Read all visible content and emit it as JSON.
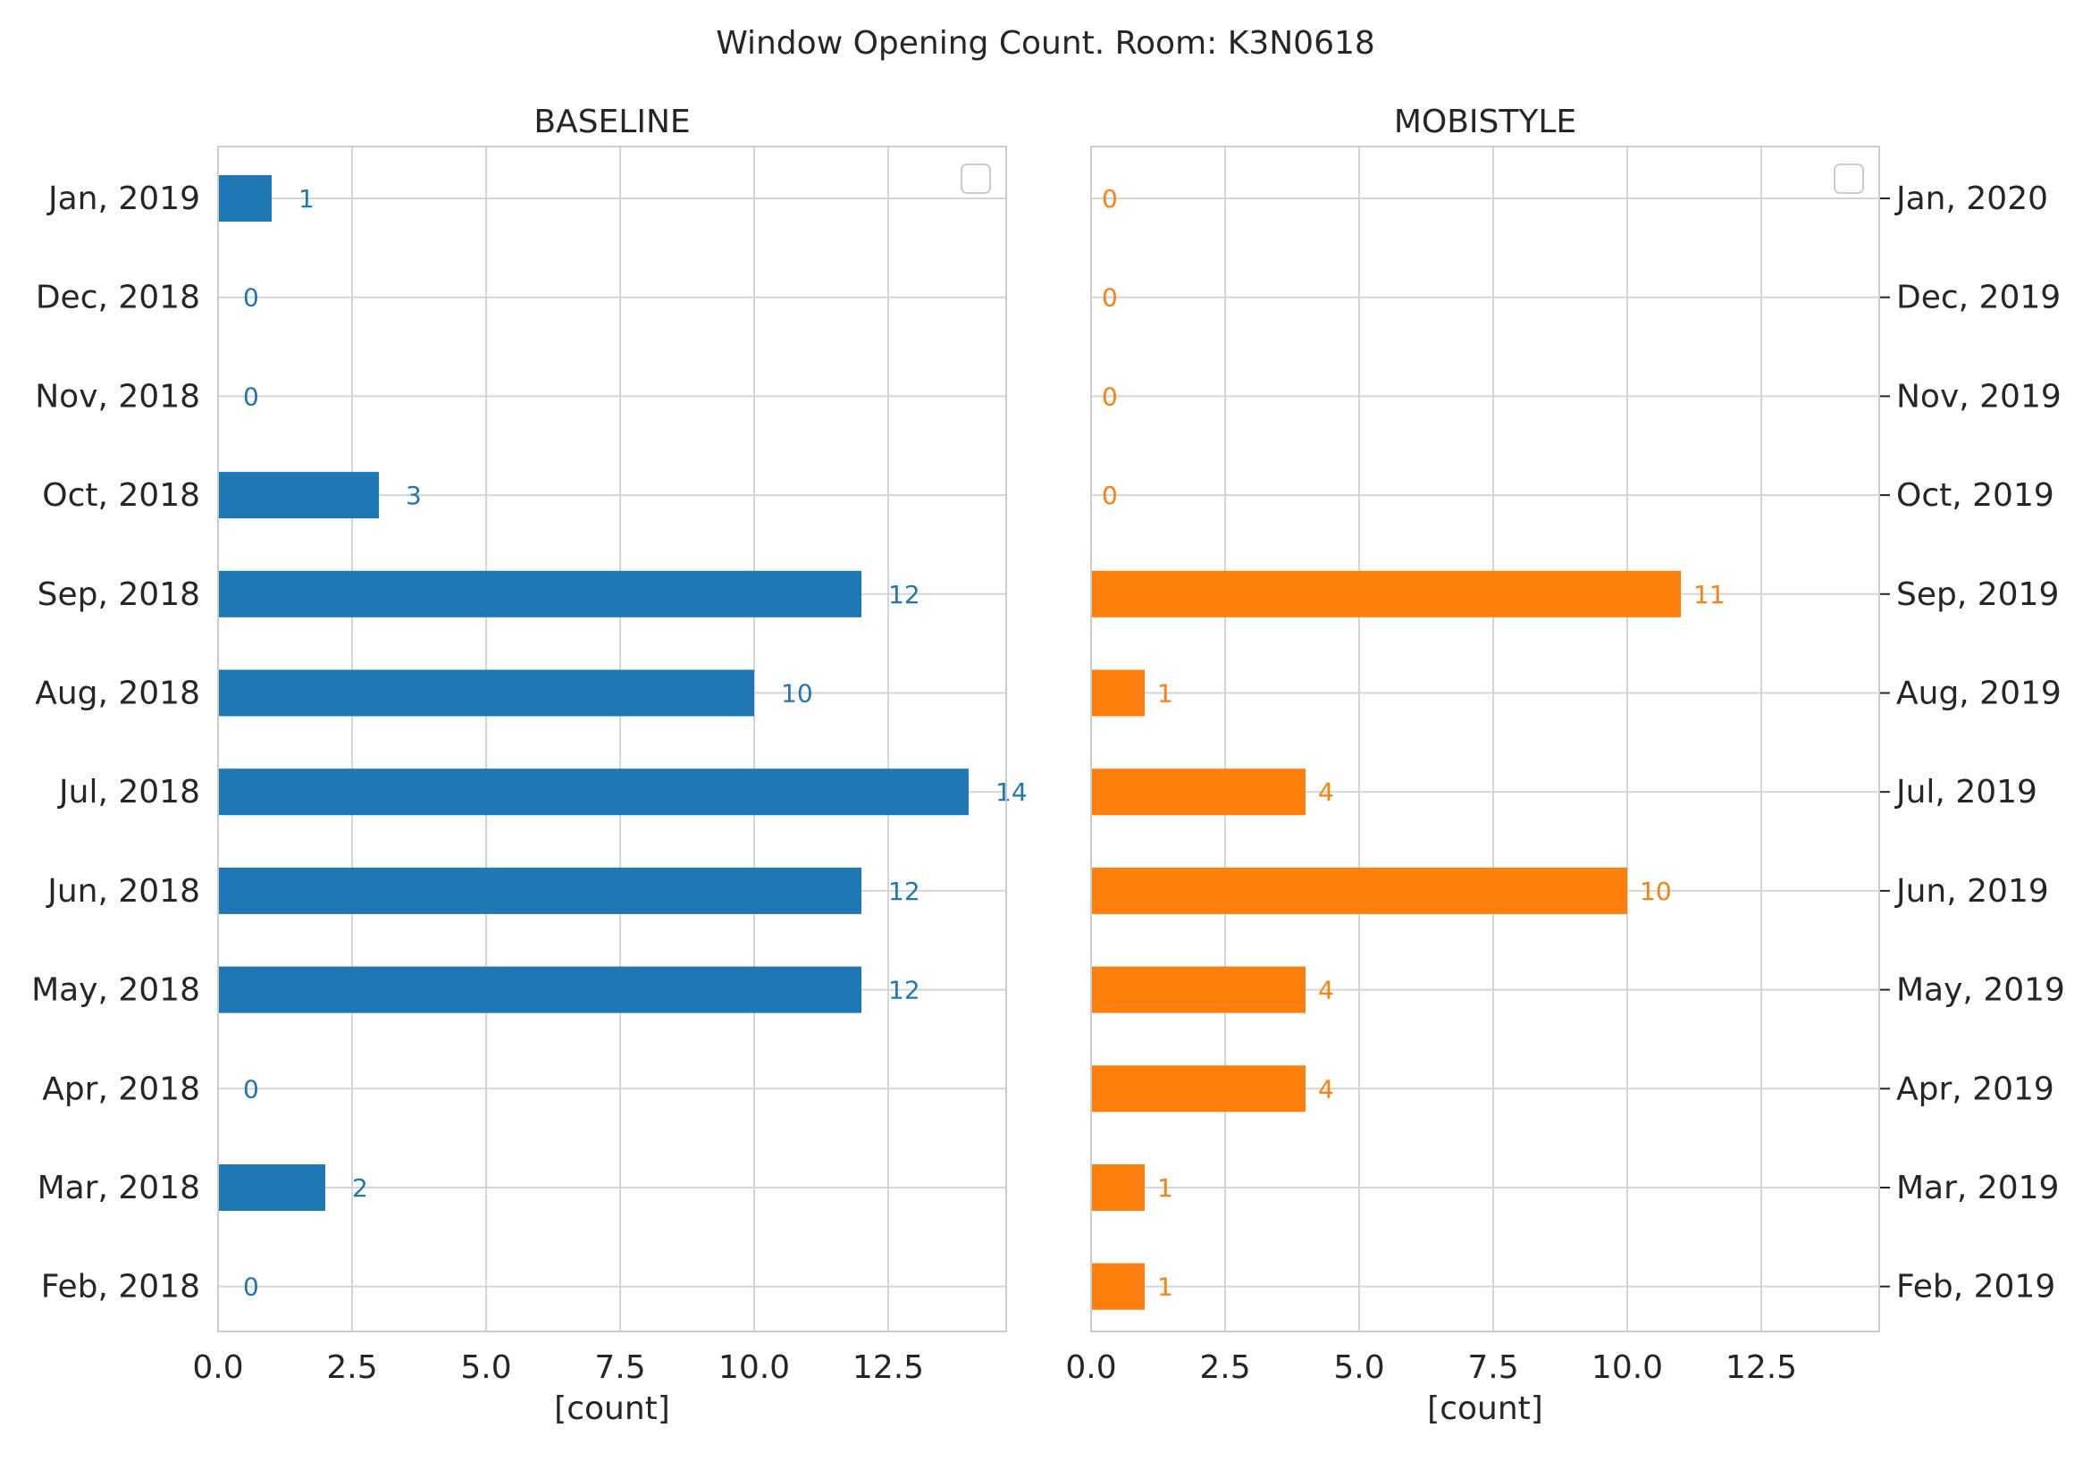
{
  "figure": {
    "suptitle": "Window Opening Count. Room: K3N0618"
  },
  "chart_data": [
    {
      "type": "bar",
      "orientation": "horizontal",
      "title": "BASELINE",
      "xlabel": "[count]",
      "ylabel": "",
      "xlim": [
        0,
        14.7
      ],
      "xticks": [
        "0.0",
        "2.5",
        "5.0",
        "7.5",
        "10.0",
        "12.5"
      ],
      "ytick_side": "left",
      "grid": true,
      "color": "#1f77b4",
      "categories": [
        "Jan, 2019",
        "Dec, 2018",
        "Nov, 2018",
        "Oct, 2018",
        "Sep, 2018",
        "Aug, 2018",
        "Jul, 2018",
        "Jun, 2018",
        "May, 2018",
        "Apr, 2018",
        "Mar, 2018",
        "Feb, 2018"
      ],
      "values": [
        1,
        0,
        0,
        3,
        12,
        10,
        14,
        12,
        12,
        0,
        2,
        0
      ],
      "data_labels": [
        "1",
        "0",
        "0",
        "3",
        "12",
        "10",
        "14",
        "12",
        "12",
        "0",
        "2",
        "0"
      ],
      "legend": "top-right (empty)"
    },
    {
      "type": "bar",
      "orientation": "horizontal",
      "title": "MOBISTYLE",
      "xlabel": "[count]",
      "ylabel": "",
      "xlim": [
        0,
        14.7
      ],
      "xticks": [
        "0.0",
        "2.5",
        "5.0",
        "7.5",
        "10.0",
        "12.5"
      ],
      "ytick_side": "right",
      "grid": true,
      "color": "#ff7f0e",
      "categories": [
        "Jan, 2020",
        "Dec, 2019",
        "Nov, 2019",
        "Oct, 2019",
        "Sep, 2019",
        "Aug, 2019",
        "Jul, 2019",
        "Jun, 2019",
        "May, 2019",
        "Apr, 2019",
        "Mar, 2019",
        "Feb, 2019"
      ],
      "values": [
        0,
        0,
        0,
        0,
        11,
        1,
        4,
        10,
        4,
        4,
        1,
        1
      ],
      "data_labels": [
        "0",
        "0",
        "0",
        "0",
        "11",
        "1",
        "4",
        "10",
        "4",
        "4",
        "1",
        "1"
      ],
      "legend": "top-right (empty)"
    }
  ]
}
